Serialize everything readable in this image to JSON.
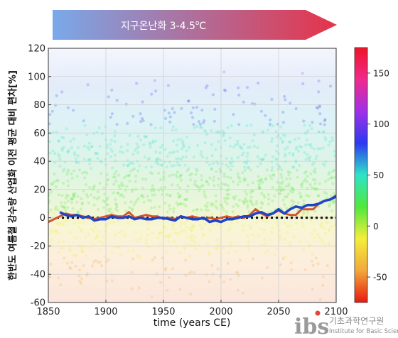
{
  "banner": {
    "text": "지구온난화 3-4.5",
    "degree_o": "o",
    "unit_c": "C",
    "gradient_colors": [
      "#79a9ea",
      "#e6334a"
    ]
  },
  "logo": {
    "mark": "ibs",
    "korean": "기초과학연구원",
    "english": "Institute for Basic Science"
  },
  "chart_data": {
    "type": "line",
    "xlabel": "time (years CE)",
    "ylabel": "한반도 여름철 강수량 산업화 이전 평균 대비 편차[%]",
    "xlim": [
      1850,
      2100
    ],
    "ylim": [
      -60,
      120
    ],
    "xticks": [
      "1850",
      "1900",
      "1950",
      "2000",
      "2050",
      "2100"
    ],
    "yticks": [
      "-60",
      "-40",
      "-20",
      "0",
      "20",
      "40",
      "60",
      "80",
      "100",
      "120"
    ],
    "grid": true,
    "baseline": {
      "y": 0,
      "style": "dotted",
      "color": "#111111"
    },
    "series": [
      {
        "color": "#d4542a",
        "x": [
          1850,
          1855,
          1860,
          1865,
          1870,
          1875,
          1880,
          1885,
          1890,
          1895,
          1900,
          1905,
          1910,
          1915,
          1920,
          1925,
          1930,
          1935,
          1940,
          1945,
          1950,
          1955,
          1960,
          1965,
          1970,
          1975,
          1980,
          1985,
          1990,
          1995,
          2000,
          2005,
          2010,
          2015,
          2020,
          2025,
          2030,
          2035,
          2040,
          2045,
          2050,
          2055,
          2060,
          2065,
          2070,
          2075,
          2080,
          2085,
          2090,
          2095,
          2100
        ],
        "y": [
          -3,
          -1,
          1,
          3,
          2,
          2,
          1,
          0,
          -1,
          0,
          1,
          2,
          1,
          1,
          4,
          0,
          1,
          2,
          1,
          1,
          -1,
          0,
          -1,
          1,
          0,
          1,
          0,
          -1,
          0,
          -1,
          0,
          1,
          0,
          1,
          0,
          2,
          6,
          3,
          1,
          3,
          5,
          3,
          2,
          2,
          6,
          6,
          6,
          10,
          12,
          13,
          16
        ]
      },
      {
        "color": "#2044c6",
        "x": [
          1860,
          1865,
          1870,
          1875,
          1880,
          1885,
          1890,
          1895,
          1900,
          1905,
          1910,
          1915,
          1920,
          1925,
          1930,
          1935,
          1940,
          1945,
          1950,
          1955,
          1960,
          1965,
          1970,
          1975,
          1980,
          1985,
          1990,
          1995,
          2000,
          2005,
          2010,
          2015,
          2020,
          2025,
          2030,
          2035,
          2040,
          2045,
          2050,
          2055,
          2060,
          2065,
          2070,
          2075,
          2080,
          2085,
          2090,
          2095,
          2100
        ],
        "y": [
          4,
          2,
          1,
          2,
          0,
          1,
          -2,
          -1,
          -1,
          1,
          0,
          0,
          1,
          -1,
          0,
          -1,
          -1,
          0,
          0,
          -1,
          -2,
          1,
          0,
          -1,
          -1,
          0,
          -3,
          -2,
          -3,
          -1,
          -1,
          0,
          1,
          1,
          3,
          4,
          2,
          3,
          6,
          3,
          6,
          8,
          7,
          9,
          9,
          10,
          12,
          13,
          15
        ]
      }
    ],
    "scatter": {
      "description_none": true,
      "y_center": 15,
      "spread": 30,
      "y_range": [
        -60,
        120
      ]
    },
    "colorbar": {
      "ticks": [
        "150",
        "100",
        "50",
        "0",
        "-50"
      ],
      "range": [
        -75,
        175
      ],
      "colors": [
        "#e81810",
        "#f2a83a",
        "#f5ee3a",
        "#4fe83d",
        "#2ee4c8",
        "#2b3af0",
        "#a030e8",
        "#f02a8c",
        "#f01426"
      ]
    }
  }
}
